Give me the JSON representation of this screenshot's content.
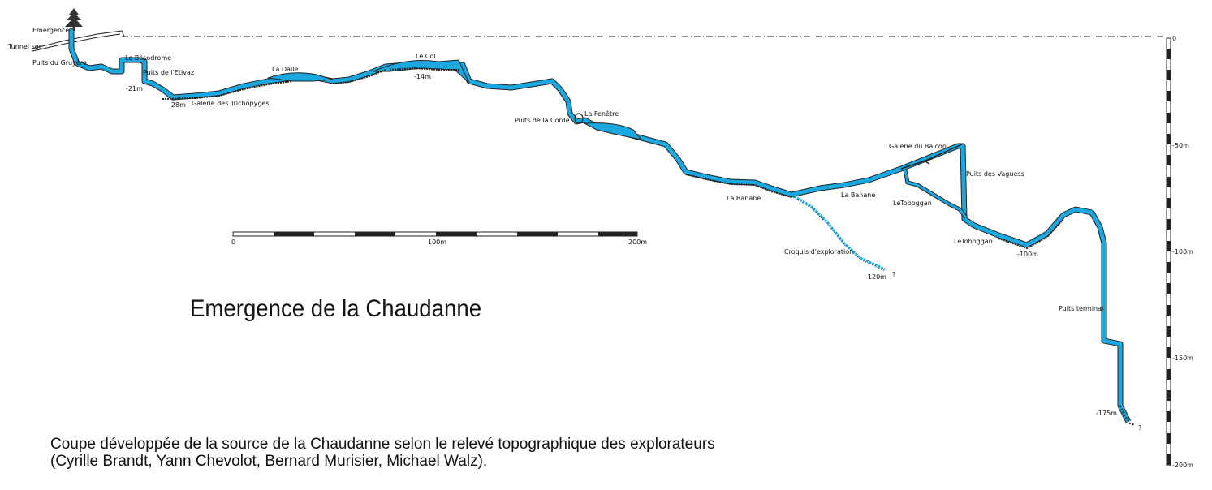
{
  "title": "Emergence de la Chaudanne",
  "caption": {
    "line1": "Coupe développée de la source de la Chaudanne selon le relevé topographique des explorateurs",
    "line2": "(Cyrille Brandt, Yann Chevolot, Bernard Murisier, Michael Walz)."
  },
  "colors": {
    "water": "#1ba8e0",
    "outline": "#222222",
    "rock": "#333333"
  },
  "labels": {
    "emergence": "Emergence",
    "tunnel_sec": "Tunnel sec",
    "puits_gruyere": "Puits du Gruyère",
    "bosodrome": "Le Bösodrome",
    "puits_etivaz": "Puits de l'Etivaz",
    "depth_21": "-21m",
    "depth_28": "-28m",
    "galerie_trichopyges": "Galerie des Trichopyges",
    "la_dalle": "La Dalle",
    "le_col": "Le Col",
    "depth_14": "-14m",
    "puits_corde": "Puits de la Corde",
    "la_fenetre": "La Fenêtre",
    "galerie_balcon": "Galerie du Balcon",
    "puits_vaguess": "Puits des Vaguess",
    "la_banane_1": "La Banane",
    "la_banane_2": "La Banane",
    "le_toboggan_1": "LeToboggan",
    "le_toboggan_2": "LeToboggan",
    "depth_100": "-100m",
    "croquis": "Croquis d'exploration",
    "depth_120": "-120m",
    "question_1": "?",
    "puits_terminal": "Puits terminal",
    "depth_175": "-175m",
    "question_2": "?"
  },
  "scale_bar": {
    "tick_0": "0",
    "tick_100": "100m",
    "tick_200": "200m"
  },
  "depth_scale": [
    "0",
    "-50m",
    "-100m",
    "-150m",
    "-200m"
  ]
}
